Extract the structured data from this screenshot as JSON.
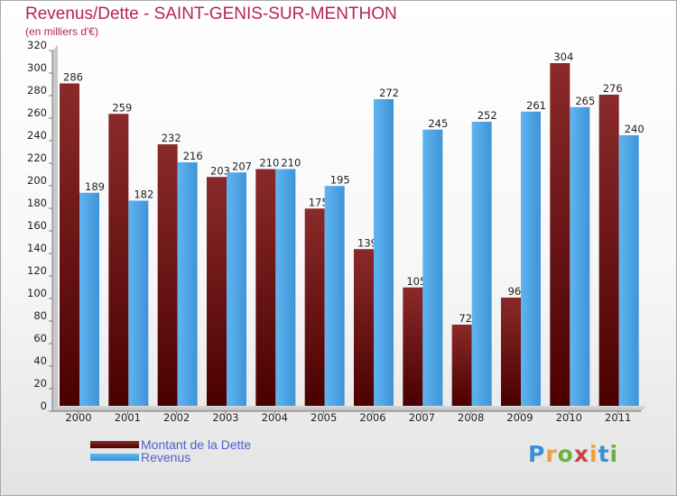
{
  "title": "Revenus/Dette - SAINT-GENIS-SUR-MENTHON",
  "subtitle": "(en milliers d'€)",
  "logo": {
    "text": "Proxiti",
    "colors": [
      "#3a8fd6",
      "#e8a23b",
      "#6cb33e",
      "#d33f3f",
      "#e8a23b",
      "#3a8fd6",
      "#6cb33e"
    ]
  },
  "chart_data": {
    "type": "bar",
    "categories": [
      "2000",
      "2001",
      "2002",
      "2003",
      "2004",
      "2005",
      "2006",
      "2007",
      "2008",
      "2009",
      "2010",
      "2011"
    ],
    "series": [
      {
        "name": "Montant de la Dette",
        "color": "#7b1717",
        "values": [
          286,
          259,
          232,
          203,
          210,
          175,
          139,
          105,
          72,
          96,
          304,
          276
        ]
      },
      {
        "name": "Revenus",
        "color": "#4aa3e6",
        "values": [
          189,
          182,
          216,
          207,
          210,
          195,
          272,
          245,
          252,
          261,
          265,
          240
        ]
      }
    ],
    "ylim": [
      0,
      320
    ],
    "yticks": [
      0,
      20,
      40,
      60,
      80,
      100,
      120,
      140,
      160,
      180,
      200,
      220,
      240,
      260,
      280,
      300,
      320
    ],
    "grid": false,
    "legend": "bottom-left"
  }
}
